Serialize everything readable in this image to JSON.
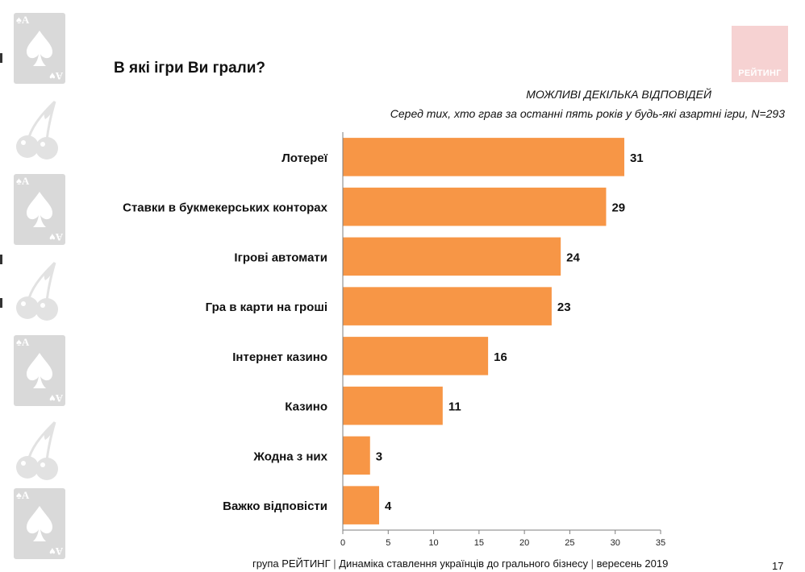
{
  "title": "В які ігри Ви грали?",
  "logo_text": "РЕЙТИНГ",
  "notes": {
    "multiple": "МОЖЛИВІ ДЕКІЛЬКА ВІДПОВІДЕЙ",
    "base": "Серед тих, хто грав за останні пять років у будь-які азартні ігри, N=293"
  },
  "colors": {
    "bar": "#F79646",
    "axis": "#7f7f7f",
    "sidebar": "#d9d9d9",
    "logo_bg": "#f6d2d2"
  },
  "icons": [
    "spade-card-icon",
    "cherry-icon"
  ],
  "card": {
    "corner_top": "♠A",
    "corner_bottom": "A♥"
  },
  "chart_data": {
    "type": "bar",
    "orientation": "horizontal",
    "categories": [
      "Лотереї",
      "Ставки в букмекерських конторах",
      "Ігрові автомати",
      "Гра в карти на гроші",
      "Інтернет казино",
      "Казино",
      "Жодна з них",
      "Важко відповісти"
    ],
    "values": [
      31,
      29,
      24,
      23,
      16,
      11,
      3,
      4
    ],
    "xlim": [
      0,
      35
    ],
    "xticks": [
      "0",
      "5",
      "10",
      "15",
      "20",
      "25",
      "30",
      "35"
    ],
    "grid": false,
    "legend": "none"
  },
  "footer": {
    "org": "група РЕЙТИНГ",
    "sep": "|",
    "topic": "Динаміка ставлення українців до грального бізнесу",
    "date": "вересень 2019"
  },
  "page_number": "17"
}
